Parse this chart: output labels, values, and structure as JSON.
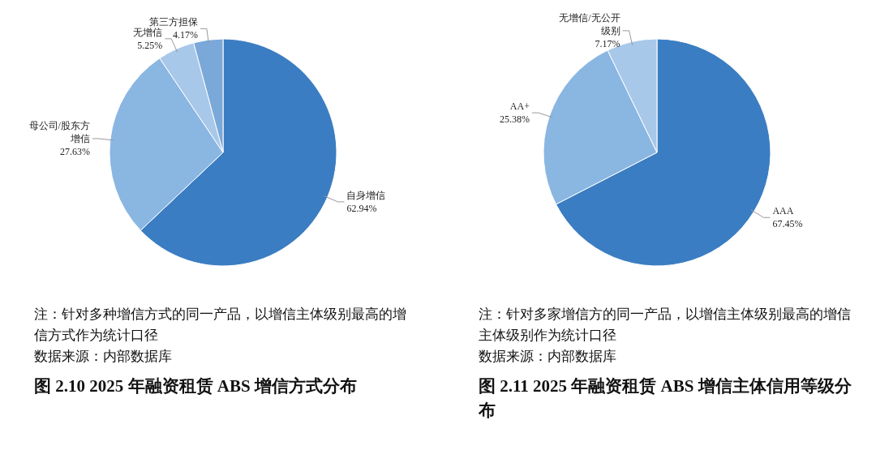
{
  "chart_data": [
    {
      "type": "pie",
      "title": "图 2.10 2025 年融资租赁 ABS 增信方式分布",
      "categories": [
        "自身增信",
        "母公司/股东方增信",
        "无增信",
        "第三方担保"
      ],
      "values": [
        62.94,
        27.63,
        5.25,
        4.17
      ],
      "colors": [
        "#3b7dc2",
        "#8ab6e2",
        "#a8c8ea",
        "#7aa8d8"
      ],
      "value_labels": [
        "62.94%",
        "27.63%",
        "5.25%",
        "4.17%"
      ],
      "annotations": [
        "注：针对多种增信方式的同一产品，以增信主体级别最高的增信方式作为统计口径",
        "数据来源：内部数据库"
      ]
    },
    {
      "type": "pie",
      "title": "图 2.11 2025 年融资租赁 ABS 增信主体信用等级分布",
      "categories": [
        "AAA",
        "AA+",
        "无增信/无公开级别"
      ],
      "values": [
        67.45,
        25.38,
        7.17
      ],
      "colors": [
        "#3b7dc2",
        "#8ab6e2",
        "#a8c8ea"
      ],
      "value_labels": [
        "67.45%",
        "25.38%",
        "7.17%"
      ],
      "annotations": [
        "注：针对多家增信方的同一产品，以增信主体级别最高的增信主体级别作为统计口径",
        "数据来源：内部数据库"
      ]
    }
  ]
}
